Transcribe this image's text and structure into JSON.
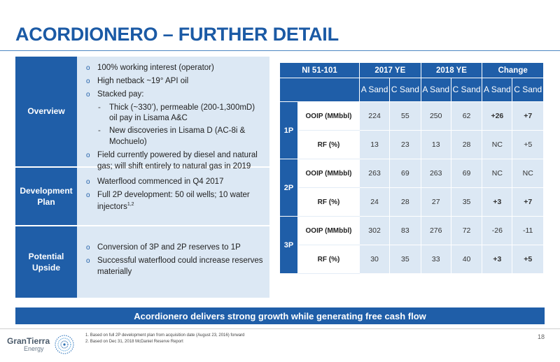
{
  "title": "ACORDIONERO – FURTHER DETAIL",
  "left_panel": {
    "overview": {
      "heading": "Overview",
      "b1": "100% working interest (operator)",
      "b2": "High netback ~19° API oil",
      "b3": "Stacked pay:",
      "s1": "Thick (~330’), permeable (200-1,300mD) oil pay in Lisama A&C",
      "s2": "New discoveries in Lisama D (AC-8i & Mochuelo)",
      "b4": "Field currently powered by diesel and natural gas; will shift entirely to natural gas in 2019"
    },
    "development": {
      "heading": "Development Plan",
      "b1": "Waterflood commenced in Q4 2017",
      "b2": "Full 2P development: 50 oil wells; 10 water injectors",
      "b2_sup": "1,2"
    },
    "upside": {
      "heading": "Potential Upside",
      "b1": "Conversion of 3P and 2P reserves to 1P",
      "b2": "Successful waterflood could increase reserves materially"
    }
  },
  "table": {
    "headers": [
      "NI 51-101",
      "2017 YE",
      "2018 YE",
      "Change"
    ],
    "sub_headers": [
      "A Sand",
      "C Sand",
      "A Sand",
      "C Sand",
      "A Sand",
      "C Sand"
    ],
    "groups": [
      {
        "label": "1P",
        "rows": [
          {
            "label": "OOIP (MMbbl)",
            "values": [
              "224",
              "55",
              "250",
              "62",
              "+26",
              "+7"
            ]
          },
          {
            "label": "RF (%)",
            "values": [
              "13",
              "23",
              "13",
              "28",
              "NC",
              "+5"
            ]
          }
        ]
      },
      {
        "label": "2P",
        "rows": [
          {
            "label": "OOIP (MMbbl)",
            "values": [
              "263",
              "69",
              "263",
              "69",
              "NC",
              "NC"
            ]
          },
          {
            "label": "RF (%)",
            "values": [
              "24",
              "28",
              "27",
              "35",
              "+3",
              "+7"
            ]
          }
        ]
      },
      {
        "label": "3P",
        "rows": [
          {
            "label": "OOIP (MMbbl)",
            "values": [
              "302",
              "83",
              "276",
              "72",
              "-26",
              "-11"
            ]
          },
          {
            "label": "RF (%)",
            "values": [
              "30",
              "35",
              "33",
              "40",
              "+3",
              "+5"
            ]
          }
        ]
      }
    ]
  },
  "banner": "Acordionero delivers strong growth while generating free cash flow",
  "footnotes": {
    "n1_mark": "1.",
    "n1": "Based on full 2P development plan from acquisition date (August 23, 2016) forward",
    "n2_mark": "2.",
    "n2": "Based on Dec 31, 2018 McDaniel Reserve Report"
  },
  "logo": {
    "line1": "GranTierra",
    "line2": "Energy"
  },
  "page_number": "18",
  "colors": {
    "brand_blue": "#1f5ea8",
    "title_blue": "#1b5aa5",
    "light_blue": "#dce8f4"
  }
}
